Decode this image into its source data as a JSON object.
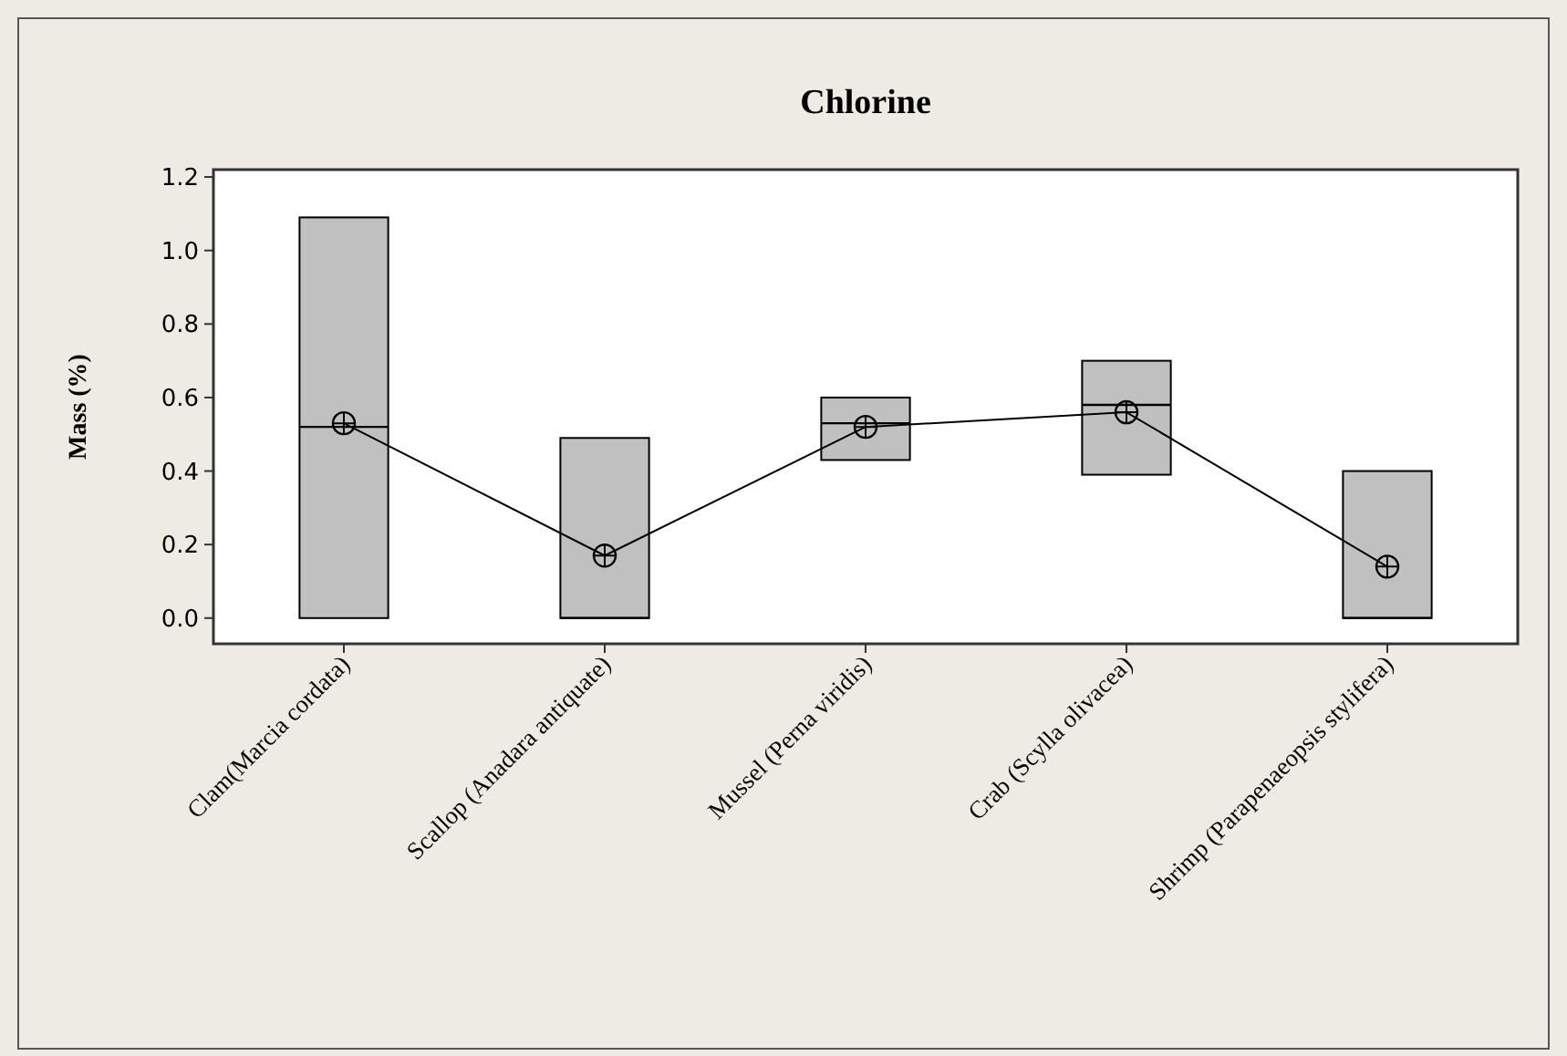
{
  "chart_data": {
    "type": "box",
    "title": "Chlorine",
    "ylabel": "Mass (%)",
    "categories": [
      "Clam(Marcia cordata)",
      "Scallop (Anadara antiquate)",
      "Mussel (Perna viridis)",
      "Crab (Scylla olivacea)",
      "Shrimp (Parapenaeopsis stylifera)"
    ],
    "boxes": [
      {
        "low": 0,
        "q1": 0,
        "median": 0.52,
        "q3": 1.09,
        "high": 1.09
      },
      {
        "low": 0,
        "q1": 0,
        "median": 0,
        "q3": 0.49,
        "high": 0.49
      },
      {
        "low": 0.43,
        "q1": 0.43,
        "median": 0.53,
        "q3": 0.6,
        "high": 0.6
      },
      {
        "low": 0.39,
        "q1": 0.39,
        "median": 0.58,
        "q3": 0.7,
        "high": 0.7
      },
      {
        "low": 0,
        "q1": 0,
        "median": 0,
        "q3": 0.4,
        "high": 0.4
      }
    ],
    "color": "#c0c0c0",
    "series": [
      {
        "type": "line",
        "color": "#000000",
        "marker": "circle",
        "values": [
          0.53,
          0.17,
          0.52,
          0.56,
          0.14
        ]
      }
    ],
    "ylim": [
      -0.07,
      1.22
    ],
    "yticks": [
      {
        "value": 0,
        "label": "0.0"
      },
      {
        "value": 0.2,
        "label": "0.2"
      },
      {
        "value": 0.4,
        "label": "0.4"
      },
      {
        "value": 0.6,
        "label": "0.6"
      },
      {
        "value": 0.8,
        "label": "0.8"
      },
      {
        "value": 1.0,
        "label": "1.0"
      },
      {
        "value": 1.2,
        "label": "1.2"
      }
    ],
    "grid": false
  }
}
